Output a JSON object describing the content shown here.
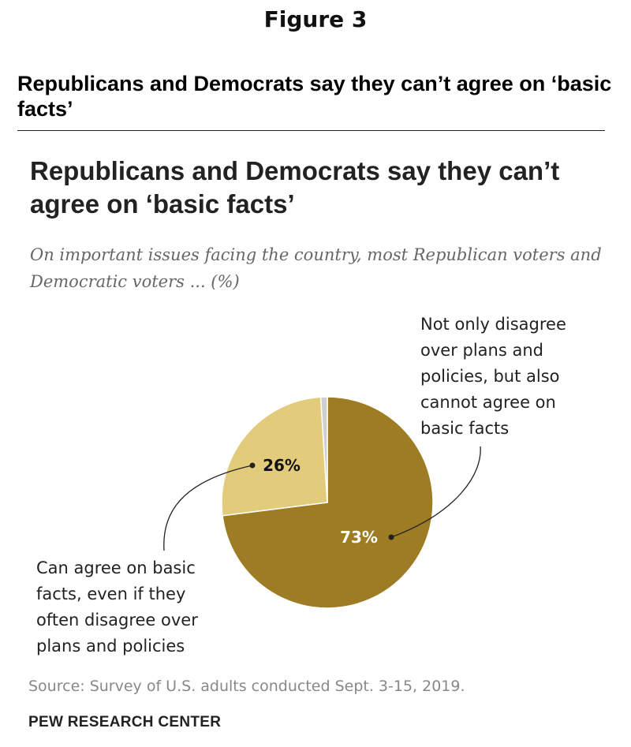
{
  "figure_label": "Figure 3",
  "outer_title": "Republicans and Democrats say they can’t agree on ‘basic facts’",
  "source": "Source: Survey of U.S. adults conducted Sept. 3-15, 2019.",
  "publisher": "PEW RESEARCH CENTER",
  "chart_data": {
    "type": "pie",
    "title": "Republicans and Democrats say they can’t agree on ‘basic facts’",
    "subtitle": "On important issues facing the country, most Republican voters and Democratic voters ... (%)",
    "slices": [
      {
        "label": "Not only disagree over plans and policies, but also cannot agree on basic facts",
        "value": 73,
        "display": "73%",
        "color": "#9d7c23"
      },
      {
        "label": "Can agree on basic facts, even if they often disagree over plans and policies",
        "value": 26,
        "display": "26%",
        "color": "#e2cb7a"
      },
      {
        "label": "",
        "value": 1,
        "display": "",
        "color": "#cfcfcf"
      }
    ],
    "legend": "none"
  }
}
